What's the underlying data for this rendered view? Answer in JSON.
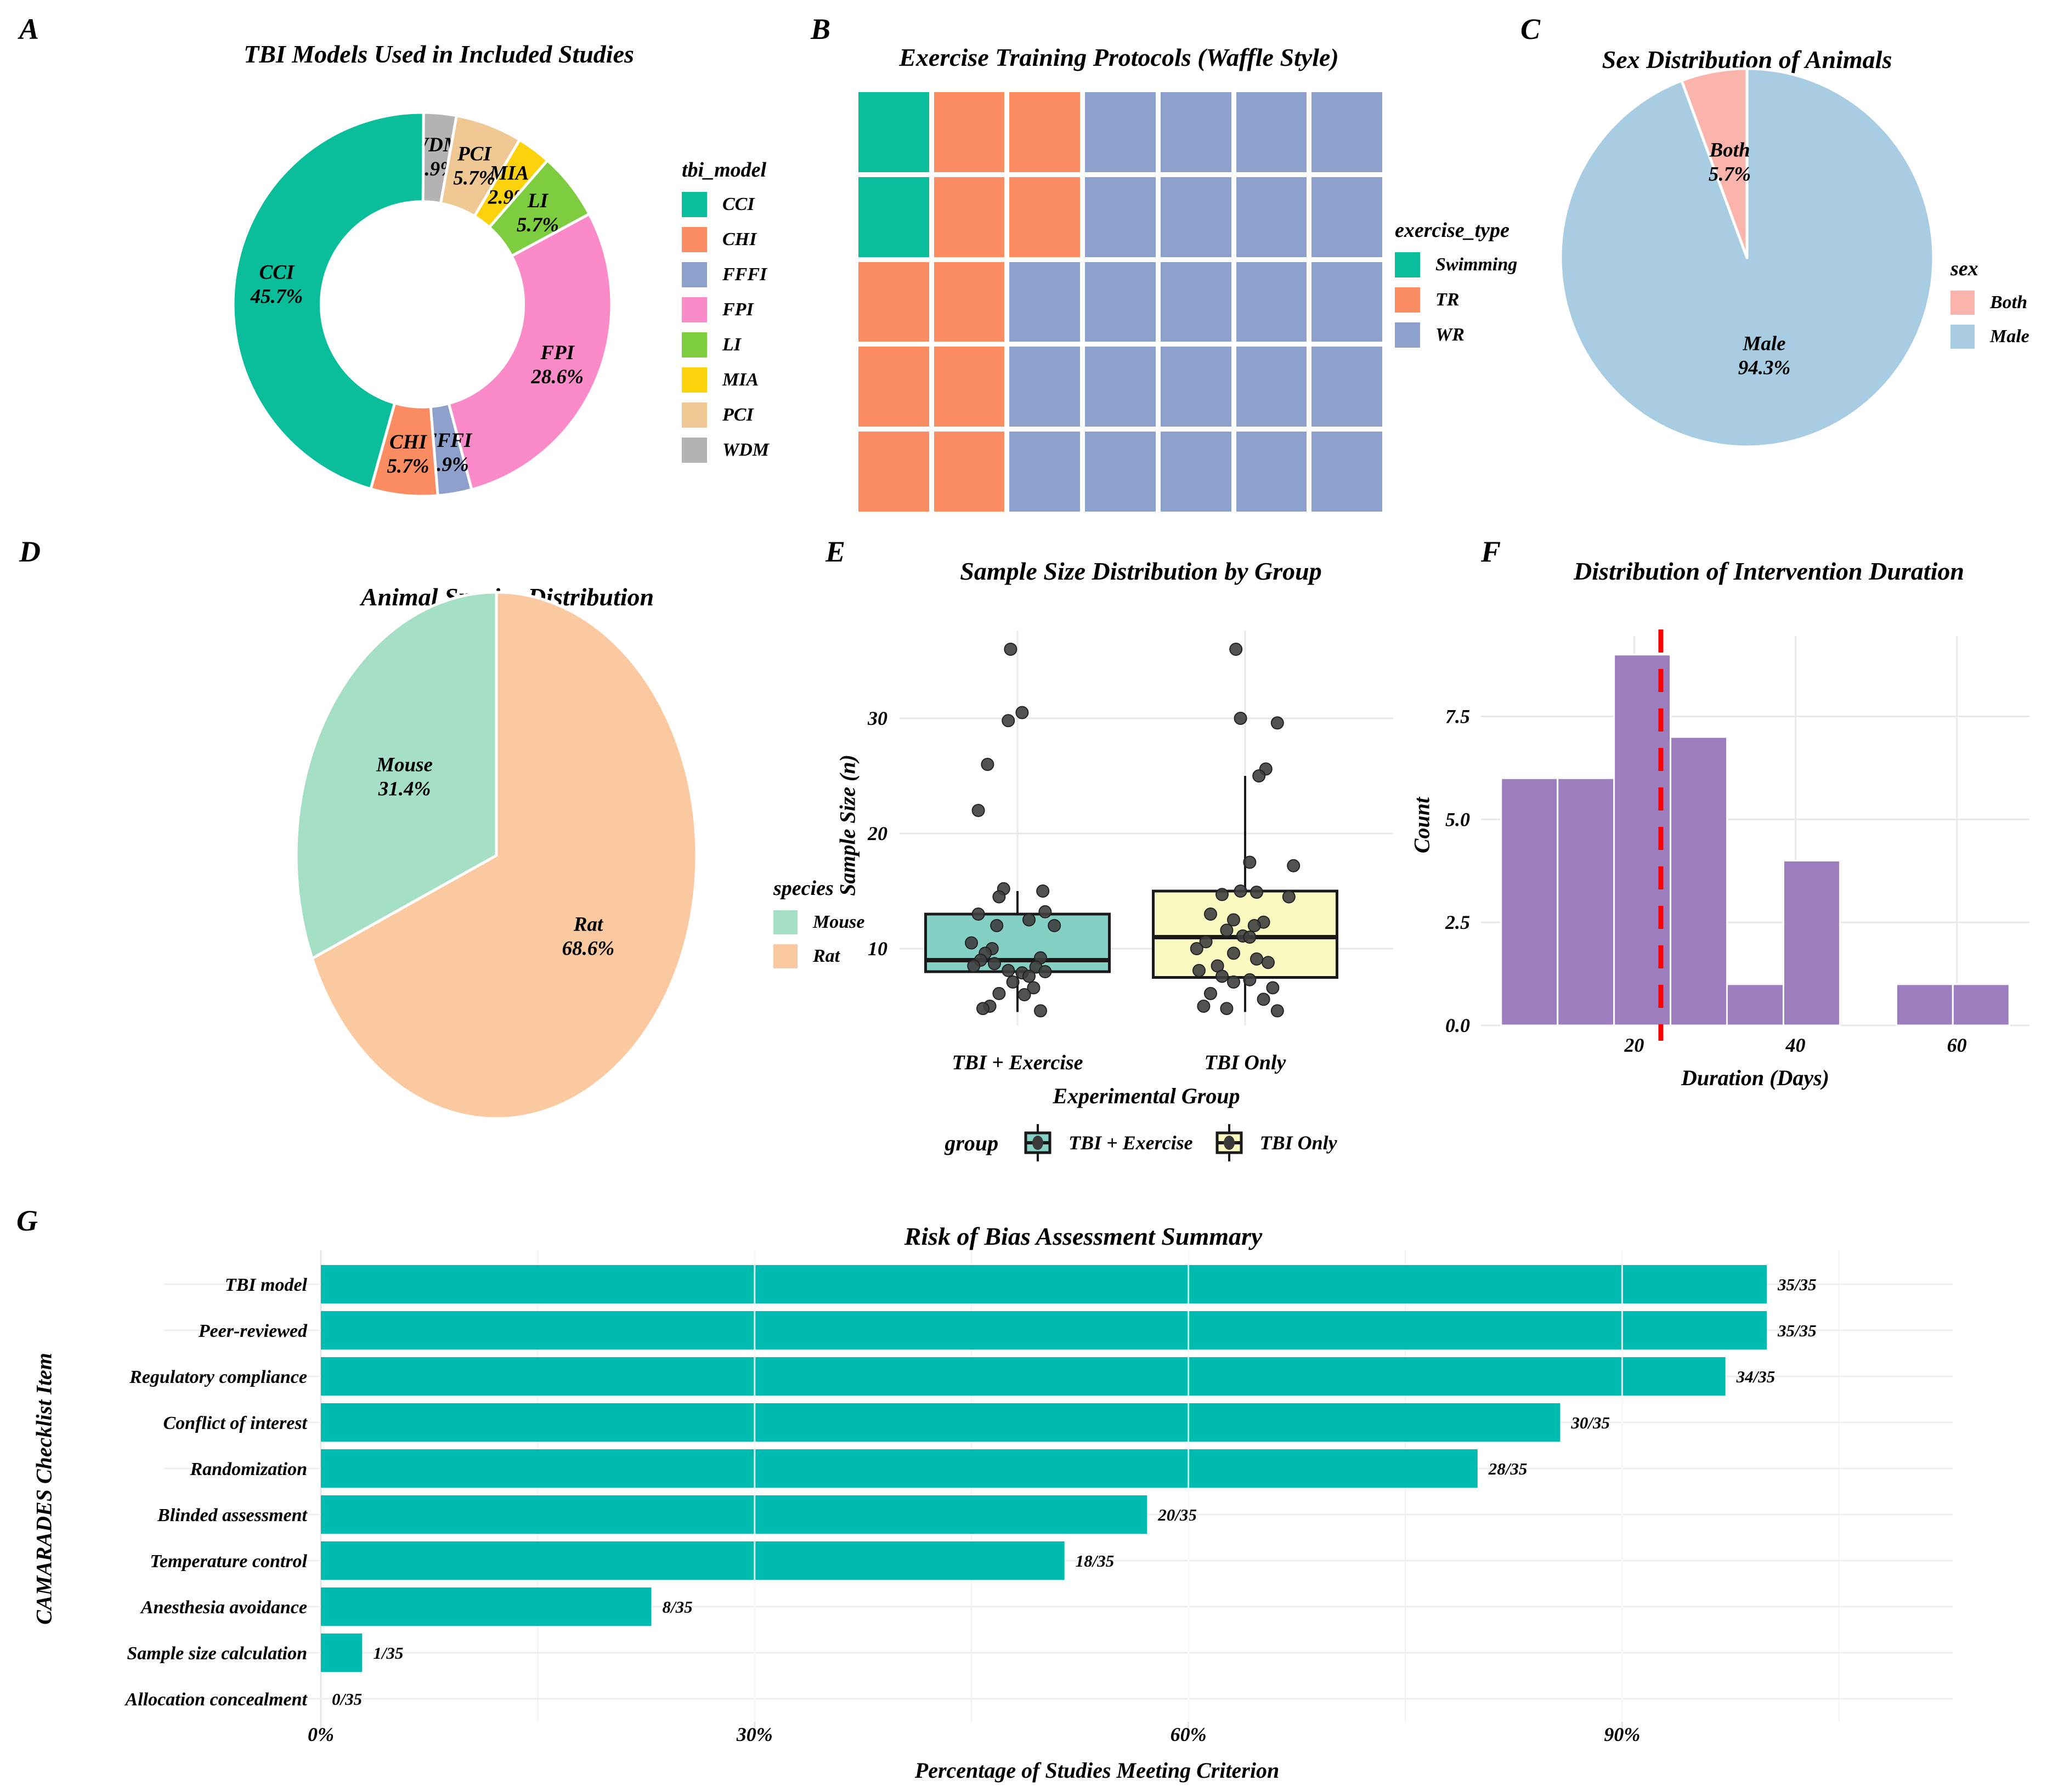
{
  "figure": {
    "background": "#FFFFFF",
    "grid_color": "#E9E9E9",
    "point_color": "#3F3F3F"
  },
  "chart_data": [
    {
      "panel": "A",
      "letter": "A",
      "type": "pie",
      "donut": true,
      "title": "TBI Models Used in Included Studies",
      "legend_title": "tbi_model",
      "legend_order": [
        "CCI",
        "CHI",
        "FFFI",
        "FPI",
        "LI",
        "MIA",
        "PCI",
        "WDM"
      ],
      "slices_clockwise_from_top": [
        {
          "label": "WDM",
          "pct": 2.9,
          "pct_label": "2.9%",
          "count": 1,
          "color": "#B3B3B3"
        },
        {
          "label": "PCI",
          "pct": 5.7,
          "pct_label": "5.7%",
          "count": 2,
          "color": "#EFC894"
        },
        {
          "label": "MIA",
          "pct": 2.9,
          "pct_label": "2.9%",
          "count": 1,
          "color": "#FBD20B"
        },
        {
          "label": "LI",
          "pct": 5.7,
          "pct_label": "5.7%",
          "count": 2,
          "color": "#7ECC3F"
        },
        {
          "label": "FPI",
          "pct": 28.6,
          "pct_label": "28.6%",
          "count": 10,
          "color": "#FA8BC8"
        },
        {
          "label": "FFFI",
          "pct": 2.9,
          "pct_label": "2.9%",
          "count": 1,
          "color": "#8DA0CB"
        },
        {
          "label": "CHI",
          "pct": 5.7,
          "pct_label": "5.7%",
          "count": 2,
          "color": "#FC8D62"
        },
        {
          "label": "CCI",
          "pct": 45.7,
          "pct_label": "45.7%",
          "count": 16,
          "color": "#0ABD9B"
        }
      ]
    },
    {
      "panel": "B",
      "letter": "B",
      "type": "waffle",
      "title": "Exercise Training Protocols (Waffle Style)",
      "legend_title": "exercise_type",
      "categories": [
        {
          "label": "Swimming",
          "count": 2,
          "color": "#0ABD9B"
        },
        {
          "label": "TR",
          "count": 10,
          "color": "#FC8D62"
        },
        {
          "label": "WR",
          "count": 23,
          "color": "#8DA0CB"
        }
      ],
      "rows": 5,
      "cols": 7,
      "cells": [
        [
          "Swimming",
          "TR",
          "TR",
          "WR",
          "WR",
          "WR",
          "WR"
        ],
        [
          "Swimming",
          "TR",
          "TR",
          "WR",
          "WR",
          "WR",
          "WR"
        ],
        [
          "TR",
          "TR",
          "WR",
          "WR",
          "WR",
          "WR",
          "WR"
        ],
        [
          "TR",
          "TR",
          "WR",
          "WR",
          "WR",
          "WR",
          "WR"
        ],
        [
          "TR",
          "TR",
          "WR",
          "WR",
          "WR",
          "WR",
          "WR"
        ]
      ]
    },
    {
      "panel": "C",
      "letter": "C",
      "type": "pie",
      "donut": false,
      "title": "Sex Distribution of Animals",
      "legend_title": "sex",
      "legend_order": [
        "Both",
        "Male"
      ],
      "slices_clockwise_from_top": [
        {
          "label": "Male",
          "pct": 94.3,
          "pct_label": "94.3%",
          "count": 33,
          "color": "#A8CDE2"
        },
        {
          "label": "Both",
          "pct": 5.7,
          "pct_label": "5.7%",
          "count": 2,
          "color": "#FBB4AC"
        }
      ]
    },
    {
      "panel": "D",
      "letter": "D",
      "type": "pie",
      "donut": false,
      "title": "Animal Species Distribution",
      "legend_title": "species",
      "legend_order": [
        "Mouse",
        "Rat"
      ],
      "slices_clockwise_from_top": [
        {
          "label": "Rat",
          "pct": 68.6,
          "pct_label": "68.6%",
          "count": 24,
          "color": "#FBC9A0"
        },
        {
          "label": "Mouse",
          "pct": 31.4,
          "pct_label": "31.4%",
          "count": 11,
          "color": "#A5E0C6"
        }
      ]
    },
    {
      "panel": "E",
      "letter": "E",
      "type": "boxplot",
      "title": "Sample Size Distribution by Group",
      "xlabel": "Experimental Group",
      "ylabel": "Sample Size (n)",
      "legend_title": "group",
      "yticks": [
        10,
        20,
        30
      ],
      "ylim": [
        3.3,
        37.6
      ],
      "groups": [
        {
          "label": "TBI + Exercise",
          "color": "#85D0C5",
          "box": {
            "whisker_low": 4.5,
            "q1": 8,
            "median": 9,
            "q3": 13,
            "whisker_high": 15
          },
          "points": [
            [
              -0.03,
              36
            ],
            [
              0.02,
              30.5
            ],
            [
              -0.04,
              29.8
            ],
            [
              -0.13,
              26
            ],
            [
              -0.17,
              22
            ],
            [
              -0.06,
              15.2
            ],
            [
              0.11,
              15
            ],
            [
              -0.08,
              14.5
            ],
            [
              0.12,
              13.2
            ],
            [
              -0.17,
              13
            ],
            [
              0.05,
              12.5
            ],
            [
              -0.09,
              12
            ],
            [
              0.16,
              12
            ],
            [
              -0.2,
              10.5
            ],
            [
              -0.11,
              10
            ],
            [
              -0.14,
              9.6
            ],
            [
              0.1,
              9.2
            ],
            [
              -0.16,
              9
            ],
            [
              -0.1,
              8.7
            ],
            [
              -0.19,
              8.5
            ],
            [
              0.08,
              8.4
            ],
            [
              -0.04,
              8.1
            ],
            [
              0.12,
              8
            ],
            [
              0.02,
              7.9
            ],
            [
              0.05,
              7.6
            ],
            [
              -0.02,
              7.1
            ],
            [
              0.07,
              6.6
            ],
            [
              -0.08,
              6.1
            ],
            [
              0.03,
              6
            ],
            [
              -0.12,
              5
            ],
            [
              -0.15,
              4.8
            ],
            [
              0.1,
              4.6
            ]
          ]
        },
        {
          "label": "TBI Only",
          "color": "#FBFBC1",
          "box": {
            "whisker_low": 4.5,
            "q1": 7.5,
            "median": 11,
            "q3": 15,
            "whisker_high": 25
          },
          "points": [
            [
              -0.04,
              36
            ],
            [
              -0.02,
              30
            ],
            [
              0.14,
              29.6
            ],
            [
              0.09,
              25.6
            ],
            [
              0.06,
              25
            ],
            [
              0.02,
              17.5
            ],
            [
              0.21,
              17.2
            ],
            [
              -0.02,
              15
            ],
            [
              0.05,
              14.9
            ],
            [
              -0.1,
              14.7
            ],
            [
              0.19,
              14.5
            ],
            [
              -0.15,
              13
            ],
            [
              -0.05,
              12.5
            ],
            [
              0.08,
              12.3
            ],
            [
              0.04,
              12
            ],
            [
              -0.08,
              11.6
            ],
            [
              -0.01,
              11.1
            ],
            [
              0.02,
              11
            ],
            [
              -0.17,
              10.6
            ],
            [
              -0.21,
              10
            ],
            [
              -0.05,
              9.6
            ],
            [
              0.05,
              9.1
            ],
            [
              0.1,
              8.8
            ],
            [
              -0.12,
              8.5
            ],
            [
              -0.2,
              8.1
            ],
            [
              -0.1,
              7.6
            ],
            [
              0.02,
              7.3
            ],
            [
              -0.05,
              7.1
            ],
            [
              0.12,
              6.6
            ],
            [
              -0.15,
              6.1
            ],
            [
              0.08,
              5.6
            ],
            [
              -0.18,
              5
            ],
            [
              -0.08,
              4.8
            ],
            [
              0.14,
              4.6
            ]
          ]
        }
      ]
    },
    {
      "panel": "F",
      "letter": "F",
      "type": "histogram",
      "title": "Distribution of Intervention Duration",
      "xlabel": "Duration (Days)",
      "ylabel": "Count",
      "bar_color": "#9C7DBD",
      "mean_line": {
        "x": 23.3,
        "color": "#FF0000"
      },
      "bin_start": 3.5,
      "bin_width": 7,
      "counts": [
        6,
        6,
        9,
        7,
        1,
        4,
        0,
        1,
        1
      ],
      "xticks": [
        20,
        40,
        60
      ],
      "ytick_labels": [
        "0.0",
        "2.5",
        "5.0",
        "7.5"
      ],
      "yticks": [
        0,
        2.5,
        5,
        7.5
      ],
      "xlim": [
        1,
        69
      ],
      "ylim": [
        0,
        9.45
      ]
    },
    {
      "panel": "G",
      "letter": "G",
      "type": "bar",
      "title": "Risk of Bias Assessment Summary",
      "xlabel": "Percentage of Studies Meeting Criterion",
      "ylabel": "CAMARADES Checklist Item",
      "bar_color": "#00BCB0",
      "total": 35,
      "items": [
        {
          "label": "TBI model",
          "value": 35,
          "annotation": "35/35"
        },
        {
          "label": "Peer-reviewed",
          "value": 35,
          "annotation": "35/35"
        },
        {
          "label": "Regulatory compliance",
          "value": 34,
          "annotation": "34/35"
        },
        {
          "label": "Conflict of interest",
          "value": 30,
          "annotation": "30/35"
        },
        {
          "label": "Randomization",
          "value": 28,
          "annotation": "28/35"
        },
        {
          "label": "Blinded assessment",
          "value": 20,
          "annotation": "20/35"
        },
        {
          "label": "Temperature control",
          "value": 18,
          "annotation": "18/35"
        },
        {
          "label": "Anesthesia avoidance",
          "value": 8,
          "annotation": "8/35"
        },
        {
          "label": "Sample size calculation",
          "value": 1,
          "annotation": "1/35"
        },
        {
          "label": "Allocation concealment",
          "value": 0,
          "annotation": "0/35"
        }
      ],
      "xtick_labels": [
        "0%",
        "30%",
        "60%",
        "90%"
      ],
      "xtick_values": [
        0,
        30,
        60,
        90
      ]
    }
  ]
}
